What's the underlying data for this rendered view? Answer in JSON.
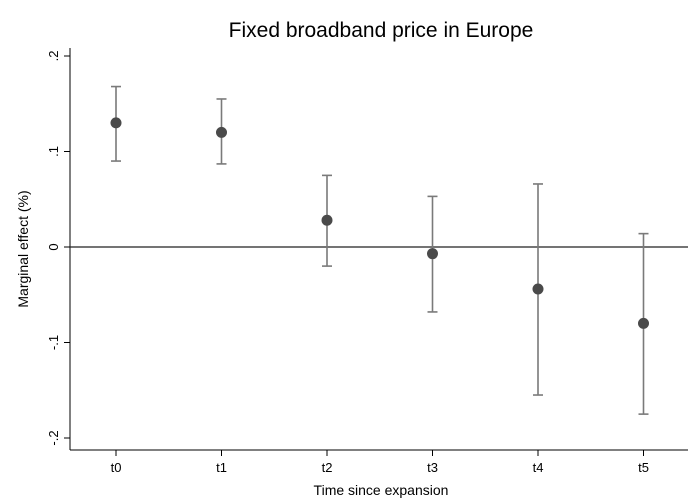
{
  "chart_data": {
    "type": "scatter",
    "title": "Fixed broadband price in Europe",
    "xlabel": "Time since expansion",
    "ylabel": "Marginal effect (%)",
    "categories": [
      "t0",
      "t1",
      "t2",
      "t3",
      "t4",
      "t5"
    ],
    "estimates": [
      0.13,
      0.12,
      0.028,
      -0.007,
      -0.044,
      -0.08
    ],
    "ci_lower": [
      0.09,
      0.087,
      -0.02,
      -0.068,
      -0.155,
      -0.175
    ],
    "ci_upper": [
      0.168,
      0.155,
      0.075,
      0.053,
      0.066,
      0.014
    ],
    "ylim": [
      -0.2,
      0.2
    ],
    "yticks": [
      {
        "value": -0.2,
        "label": "-.2"
      },
      {
        "value": -0.1,
        "label": "-.1"
      },
      {
        "value": 0,
        "label": "0"
      },
      {
        "value": 0.1,
        "label": ".1"
      },
      {
        "value": 0.2,
        "label": ".2"
      }
    ],
    "reference_line": 0,
    "grid": false,
    "legend": "none",
    "colors": {
      "point": "#4a4a4a",
      "whisker": "#7a7a7a",
      "axis": "#000000"
    }
  }
}
